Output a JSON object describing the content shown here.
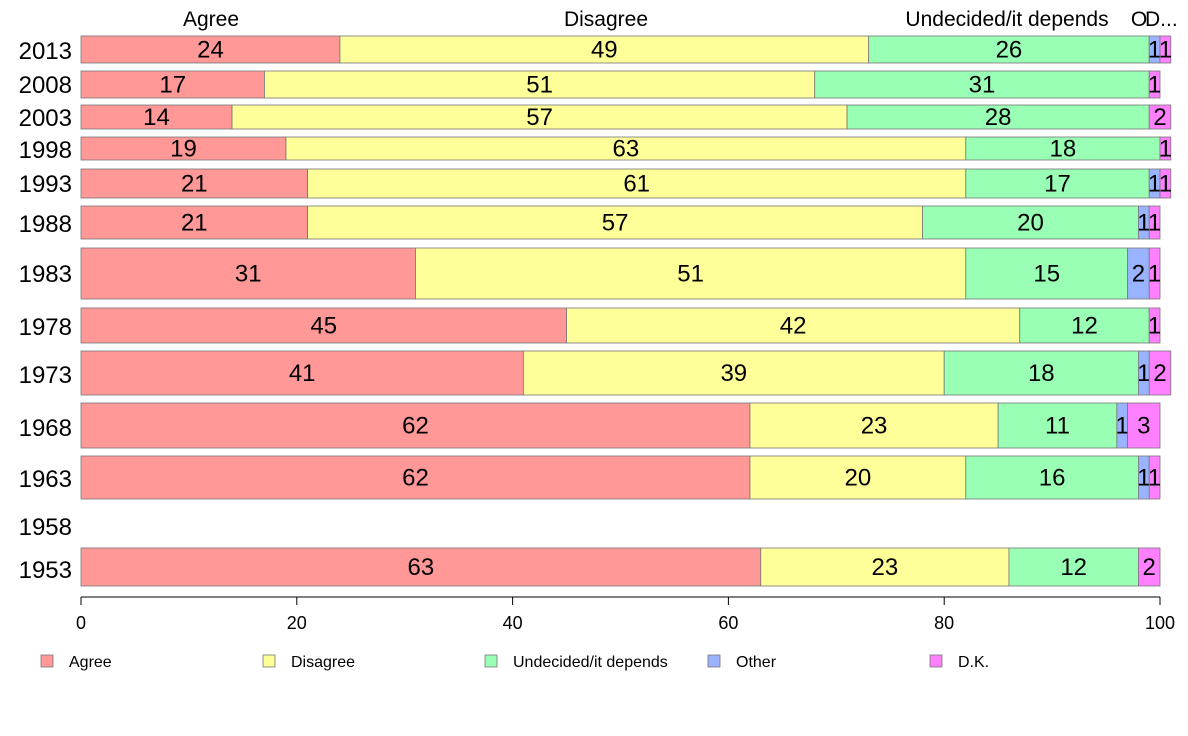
{
  "chart_data": {
    "type": "bar",
    "orientation": "horizontal",
    "stacked": true,
    "categories": [
      "2013",
      "2008",
      "2003",
      "1998",
      "1993",
      "1988",
      "1983",
      "1978",
      "1973",
      "1968",
      "1963",
      "1958",
      "1953"
    ],
    "series": [
      {
        "name": "Agree",
        "color": "#ff9896",
        "values": [
          24,
          17,
          14,
          19,
          21,
          21,
          31,
          45,
          41,
          62,
          62,
          null,
          63
        ]
      },
      {
        "name": "Disagree",
        "color": "#ffff99",
        "values": [
          49,
          51,
          57,
          63,
          61,
          57,
          51,
          42,
          39,
          23,
          20,
          null,
          23
        ]
      },
      {
        "name": "Undecided/it depends",
        "color": "#98ffb4",
        "values": [
          26,
          31,
          28,
          18,
          17,
          20,
          15,
          12,
          18,
          11,
          16,
          null,
          12
        ]
      },
      {
        "name": "Other",
        "color": "#99b3ff",
        "values": [
          1,
          0,
          0,
          0,
          1,
          1,
          2,
          0,
          1,
          1,
          1,
          null,
          0
        ]
      },
      {
        "name": "D.K.",
        "color": "#ff80ff",
        "values": [
          1,
          1,
          2,
          1,
          1,
          1,
          1,
          1,
          2,
          3,
          1,
          null,
          2
        ]
      }
    ],
    "top_labels": [
      "Agree",
      "Disagree",
      "Undecided/it depends",
      "O",
      "D..."
    ],
    "xlim": [
      0,
      100
    ],
    "x_ticks": [
      0,
      20,
      40,
      60,
      80,
      100
    ],
    "legend_position": "bottom",
    "grid": false
  }
}
